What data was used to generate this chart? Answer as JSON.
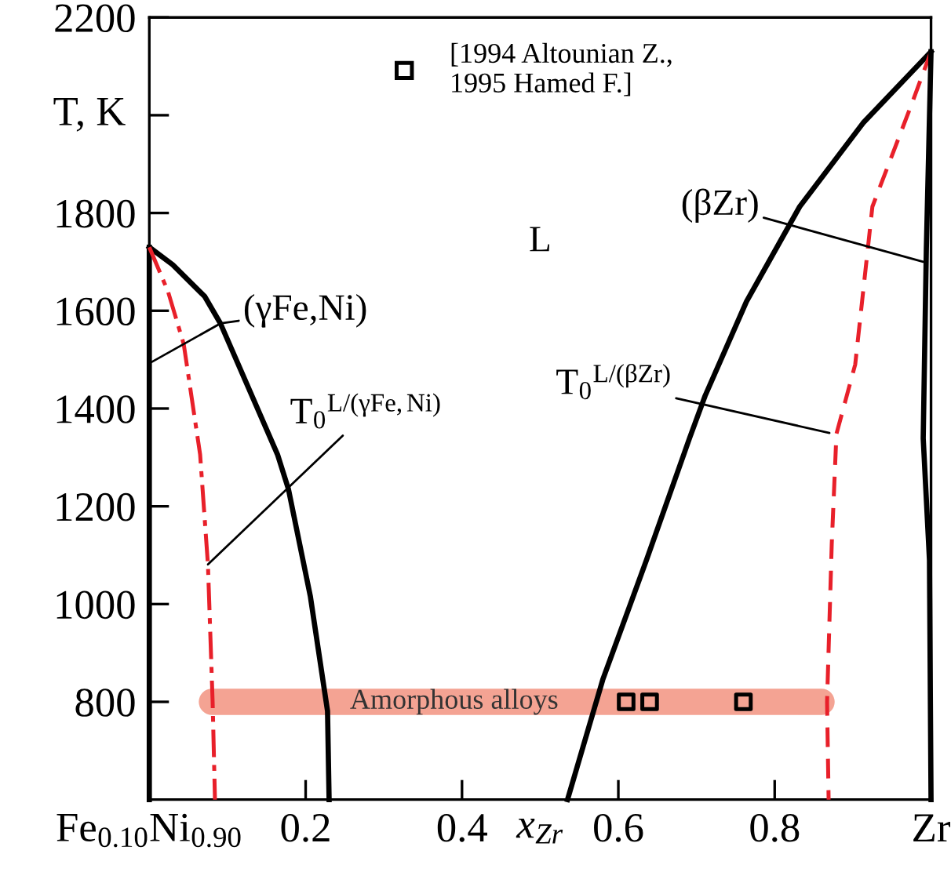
{
  "chart_data": {
    "type": "line",
    "xlabel": "x$_{Zr}$",
    "ylabel": "T, K",
    "xlim": [
      0,
      1
    ],
    "ylim": [
      600,
      2200
    ],
    "xticks": [
      {
        "value": 0,
        "label": "Fe$_{0.10}$Ni$_{0.90}$"
      },
      0.2,
      0.4,
      0.6,
      0.8,
      {
        "value": 1,
        "label": "Zr"
      }
    ],
    "yticks": [
      800,
      1000,
      1200,
      1400,
      1600,
      1800,
      {
        "value": 2000,
        "label": null
      },
      2200
    ],
    "grid": false,
    "legend": "top",
    "series": [
      {
        "color": "#000000",
        "line_style": "solid",
        "x": [
          0,
          0
        ],
        "values": [
          1730,
          600
        ]
      },
      {
        "color": "#000000",
        "line_style": "solid",
        "x": [
          0,
          0.03,
          0.071,
          0.091,
          0.164,
          0.178,
          0.206,
          0.228,
          0.23
        ],
        "values": [
          1730,
          1694,
          1629,
          1574,
          1306,
          1235,
          1016,
          781,
          600
        ]
      },
      {
        "color": "#e8202a",
        "line_style": "dashdot",
        "x": [
          0,
          0.024,
          0.044,
          0.065,
          0.075,
          0.081,
          0.084
        ],
        "values": [
          1730,
          1639,
          1532,
          1306,
          1081,
          800,
          600
        ]
      },
      {
        "color": "#000000",
        "line_style": "solid",
        "x": [
          0.535,
          0.58,
          0.636,
          0.691,
          0.711,
          0.764,
          0.832,
          0.913,
          1.0
        ],
        "values": [
          600,
          845,
          1090,
          1339,
          1426,
          1619,
          1813,
          1984,
          2130
        ]
      },
      {
        "color": "#e8202a",
        "line_style": "dashed",
        "x": [
          1.0,
          0.976,
          0.925,
          0.903,
          0.879,
          0.873,
          0.867,
          0.869
        ],
        "values": [
          2130,
          2026,
          1813,
          1490,
          1348,
          1123,
          800,
          600
        ]
      },
      {
        "color": "#000000",
        "line_style": "solid",
        "x": [
          1.0,
          0.994,
          0.99,
          0.998,
          1.0
        ],
        "values": [
          2130,
          1726,
          1339,
          1090,
          600
        ]
      },
      {
        "type": "line",
        "name": "Amorphous alloys",
        "color": "#f4a393",
        "x": [
          0.08,
          0.86
        ],
        "values": [
          800,
          800
        ]
      },
      {
        "type": "scatter",
        "name": "[1994 Altounian Z.,\n1995 Hamed F.]",
        "color": "#000000",
        "marker": "square",
        "x": [
          0.61,
          0.64,
          0.76
        ],
        "values": [
          800,
          800,
          800
        ]
      }
    ],
    "annotations": [
      {
        "text": "(γFe,Ni)",
        "x": 0.091,
        "y": 1574
      },
      {
        "text": "T$_{0}$$^{L/(γFe,Ni)}$",
        "x": 0.075,
        "y": 1081
      },
      {
        "text": "(βZr)",
        "x": 0.99,
        "y": 1700
      },
      {
        "text": "T$_{0}$$^{L/(βZr)}$",
        "x": 0.87,
        "y": 1350
      },
      "L"
    ]
  }
}
